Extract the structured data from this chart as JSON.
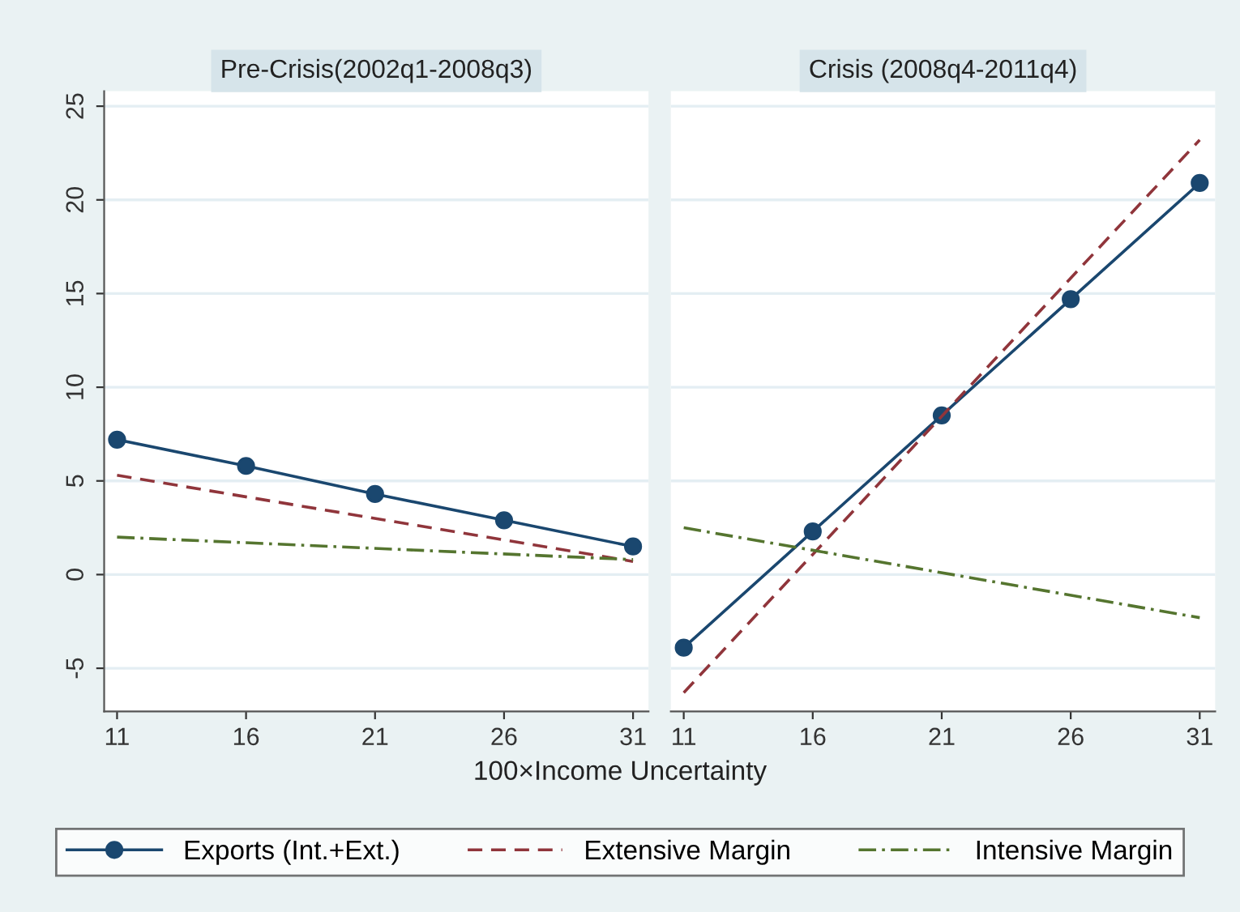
{
  "chart_data": [
    {
      "type": "line",
      "title": "Pre-Crisis(2002q1-2008q3)",
      "xlabel": "100×Income Uncertainty",
      "xlim": [
        10.5,
        31.6
      ],
      "xticks": [
        11,
        16,
        21,
        26,
        31
      ],
      "ylim": [
        -7.3,
        25.8
      ],
      "yticks": [
        -5,
        0,
        5,
        10,
        15,
        20,
        25
      ],
      "grid": "y",
      "legend": "bottom",
      "series": [
        {
          "name": "Exports (Int.+Ext.)",
          "color": "#1a476f",
          "x": [
            11,
            16,
            21,
            26,
            31
          ],
          "values": [
            7.2,
            5.8,
            4.3,
            2.9,
            1.5
          ],
          "marker": "circle",
          "line_style": "solid"
        },
        {
          "name": "Extensive Margin",
          "color": "#90353b",
          "x": [
            11,
            31
          ],
          "values": [
            5.3,
            0.7
          ],
          "marker": "none",
          "line_style": "dashed"
        },
        {
          "name": "Intensive Margin",
          "color": "#55752f",
          "x": [
            11,
            31
          ],
          "values": [
            2.0,
            0.8
          ],
          "marker": "none",
          "line_style": "dashdot"
        }
      ]
    },
    {
      "type": "line",
      "title": "Crisis (2008q4-2011q4)",
      "xlim": [
        10.5,
        31.6
      ],
      "xticks": [
        11,
        16,
        21,
        26,
        31
      ],
      "ylim": [
        -7.3,
        25.8
      ],
      "yticks": [
        -5,
        0,
        5,
        10,
        15,
        20,
        25
      ],
      "grid": "y",
      "tick_labels": "x",
      "series": [
        {
          "color": "#1a476f",
          "x": [
            11,
            16,
            21,
            26,
            31
          ],
          "values": [
            -3.9,
            2.3,
            8.5,
            14.7,
            20.9
          ],
          "marker": "circle",
          "line_style": "solid"
        },
        {
          "color": "#90353b",
          "x": [
            11,
            31
          ],
          "values": [
            -6.3,
            23.2
          ],
          "marker": "none",
          "line_style": "dashed"
        },
        {
          "color": "#55752f",
          "x": [
            11,
            31
          ],
          "values": [
            2.5,
            -2.3
          ],
          "marker": "none",
          "line_style": "dashdot"
        }
      ]
    }
  ]
}
